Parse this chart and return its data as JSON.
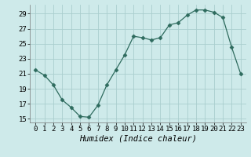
{
  "x": [
    0,
    1,
    2,
    3,
    4,
    5,
    6,
    7,
    8,
    9,
    10,
    11,
    12,
    13,
    14,
    15,
    16,
    17,
    18,
    19,
    20,
    21,
    22,
    23
  ],
  "y": [
    21.5,
    20.8,
    19.5,
    17.5,
    16.5,
    15.3,
    15.2,
    16.8,
    19.5,
    21.5,
    23.5,
    26.0,
    25.8,
    25.5,
    25.8,
    27.5,
    27.8,
    28.8,
    29.5,
    29.5,
    29.2,
    28.5,
    24.5,
    21.0
  ],
  "xlabel": "Humidex (Indice chaleur)",
  "line_color": "#2e6b5e",
  "marker": "D",
  "marker_size": 2.5,
  "bg_color": "#ceeaea",
  "grid_color": "#aacece",
  "ylim": [
    14.5,
    30.2
  ],
  "yticks": [
    15,
    17,
    19,
    21,
    23,
    25,
    27,
    29
  ],
  "xticks": [
    0,
    1,
    2,
    3,
    4,
    5,
    6,
    7,
    8,
    9,
    10,
    11,
    12,
    13,
    14,
    15,
    16,
    17,
    18,
    19,
    20,
    21,
    22,
    23
  ],
  "xlabel_fontsize": 7.5,
  "tick_fontsize": 6.5
}
